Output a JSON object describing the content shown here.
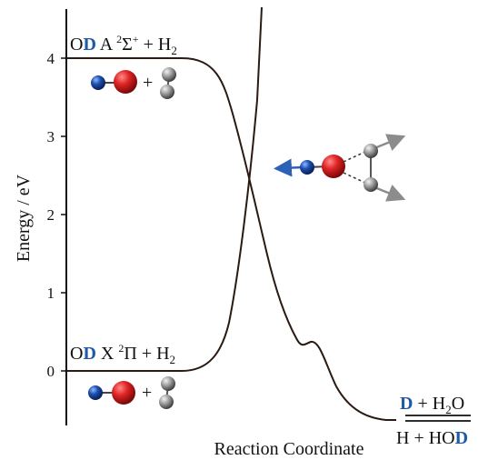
{
  "axis": {
    "ylabel": "Energy / eV",
    "xlabel": "Reaction Coordinate",
    "yticks": [
      "4",
      "3",
      "2",
      "1",
      "0"
    ]
  },
  "labels": {
    "excited": {
      "o": "O",
      "d": "D",
      "state": " A ",
      "sup": "2",
      "sym": "Σ",
      "sup2": "+",
      "plus": " + H",
      "sub": "2"
    },
    "ground": {
      "o": "O",
      "d": "D",
      "state": " X ",
      "sup": "2",
      "sym": "Π",
      "plus": " + H",
      "sub": "2"
    },
    "product_top": {
      "d": "D",
      "rest": " + H",
      "sub": "2",
      "o": "O"
    },
    "product_bottom": {
      "h": "H + HO",
      "d": "D"
    },
    "plus_sign": "+"
  },
  "colors": {
    "oxygen": "#d61e1e",
    "deuterium": "#1f5aa6",
    "hydrogen": "#8f8f8f",
    "arrow_blue": "#2b62b8",
    "arrow_gray": "#8c8c8c",
    "curve": "#2a1a12"
  },
  "icons": [
    "od-molecule-icon",
    "h2-molecule-icon",
    "od-h2-complex-icon"
  ]
}
